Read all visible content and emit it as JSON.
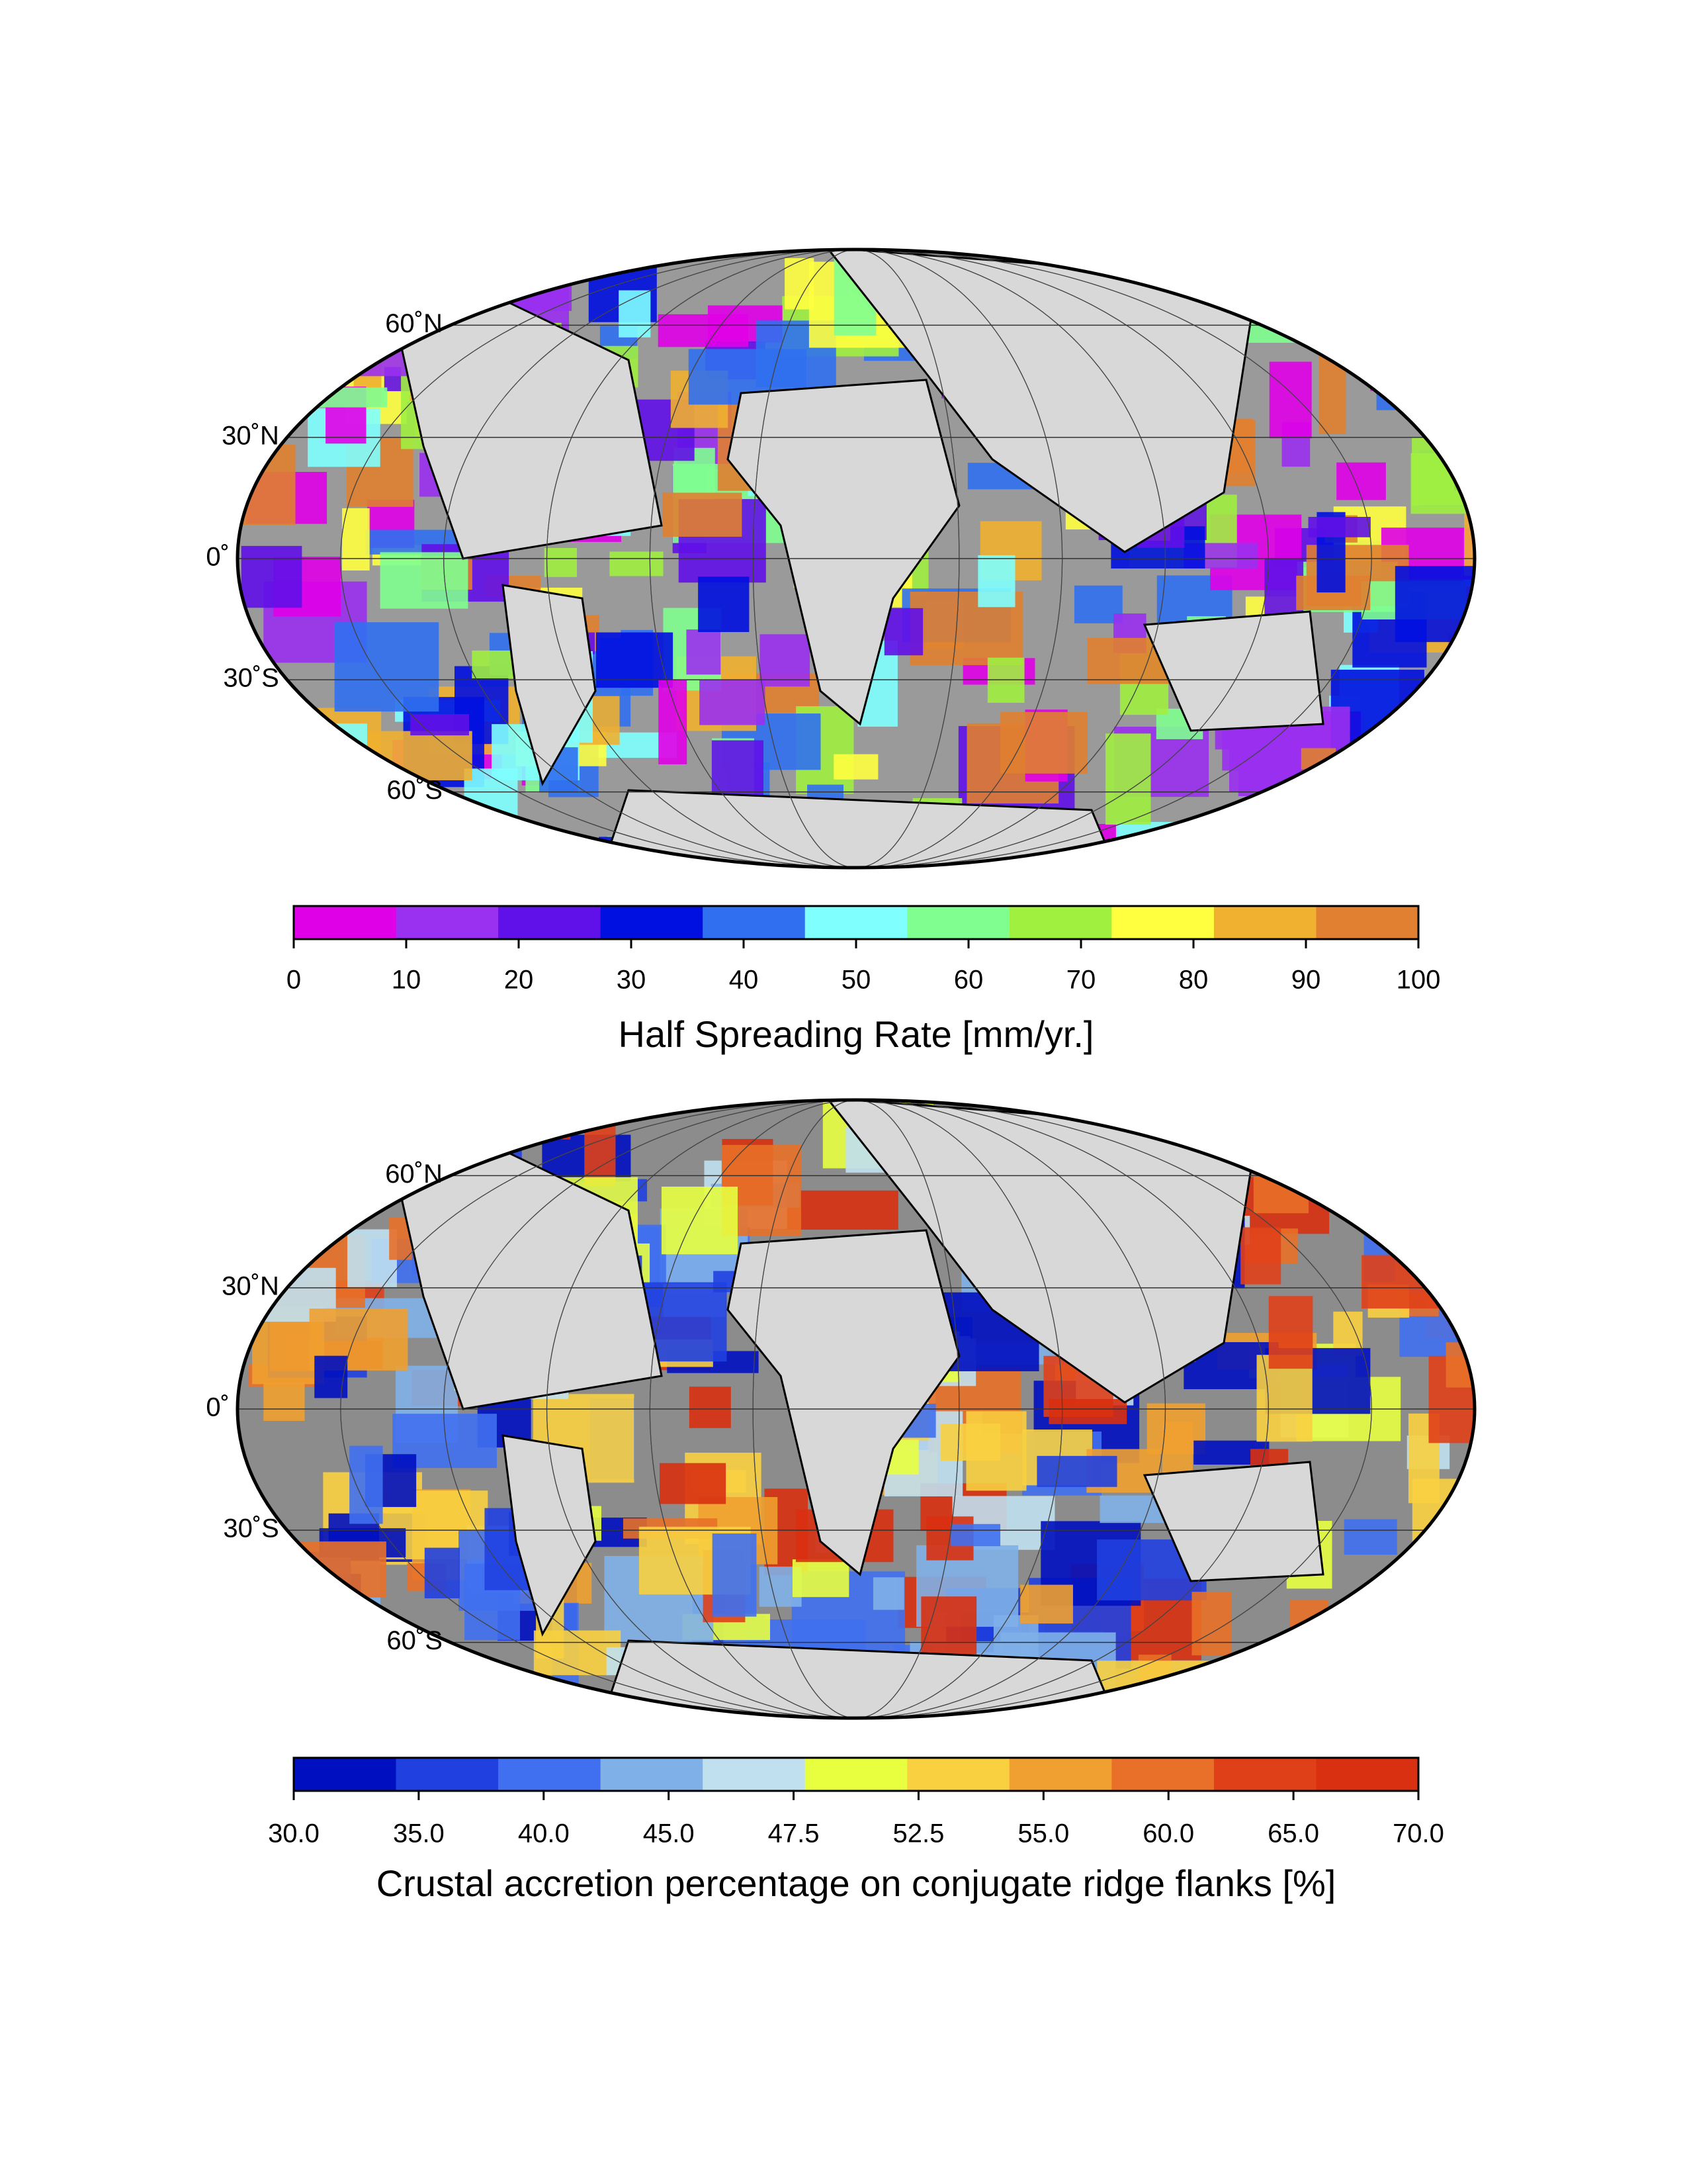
{
  "maps": [
    {
      "lat_labels": [
        "60˚N",
        "30˚N",
        "0˚",
        "30˚S",
        "60˚S"
      ],
      "colorbar": {
        "colors": [
          "#e000e8",
          "#9a30f0",
          "#6010e8",
          "#0010e0",
          "#3070f0",
          "#80ffff",
          "#80ff90",
          "#a0f040",
          "#ffff40",
          "#f0b030",
          "#e08030"
        ],
        "ticks": [
          0,
          10,
          20,
          30,
          40,
          50,
          60,
          70,
          80,
          90,
          100
        ],
        "title": "Half Spreading Rate [mm/yr.]"
      }
    },
    {
      "lat_labels": [
        "60˚N",
        "30˚N",
        "0˚",
        "30˚S",
        "60˚S"
      ],
      "colorbar": {
        "colors": [
          "#0010c0",
          "#2040e0",
          "#4070f0",
          "#80b0e8",
          "#c0e0f0",
          "#e8ff40",
          "#f8d040",
          "#f0a030",
          "#e87028",
          "#e04018",
          "#d83010"
        ],
        "ticks": [
          {
            "value": 30,
            "label": "30.0"
          },
          {
            "value": 35,
            "label": "35.0"
          },
          {
            "value": 40,
            "label": "40.0"
          },
          {
            "value": 45,
            "label": "45.0"
          },
          {
            "value": 47.5,
            "label": "47.5"
          },
          {
            "value": 52.5,
            "label": "52.5"
          },
          {
            "value": 55,
            "label": "55.0"
          },
          {
            "value": 60,
            "label": "60.0"
          },
          {
            "value": 65,
            "label": "65.0"
          },
          {
            "value": 70,
            "label": "70.0"
          }
        ],
        "title": "Crustal accretion percentage on conjugate ridge flanks [%]"
      }
    }
  ]
}
